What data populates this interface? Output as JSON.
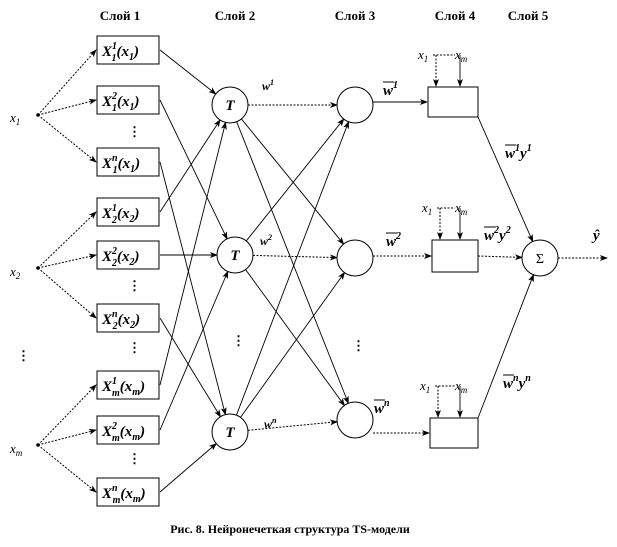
{
  "layers": [
    "Слой 1",
    "Слой 2",
    "Слой 3",
    "Слой 4",
    "Слой 5"
  ],
  "inputs": [
    {
      "base": "x",
      "sub": "1"
    },
    {
      "base": "x",
      "sub": "2"
    },
    {
      "base": "x",
      "sub": "m"
    }
  ],
  "membership_boxes": [
    {
      "base": "X",
      "sup": "1",
      "sub": "1",
      "arg": "x",
      "arg_sub": "1"
    },
    {
      "base": "X",
      "sup": "2",
      "sub": "1",
      "arg": "x",
      "arg_sub": "1"
    },
    {
      "base": "X",
      "sup": "n",
      "sub": "1",
      "arg": "x",
      "arg_sub": "1"
    },
    {
      "base": "X",
      "sup": "1",
      "sub": "2",
      "arg": "x",
      "arg_sub": "2"
    },
    {
      "base": "X",
      "sup": "2",
      "sub": "2",
      "arg": "x",
      "arg_sub": "2"
    },
    {
      "base": "X",
      "sup": "n",
      "sub": "2",
      "arg": "x",
      "arg_sub": "2"
    },
    {
      "base": "X",
      "sup": "1",
      "sub": "m",
      "arg": "x",
      "arg_sub": "m"
    },
    {
      "base": "X",
      "sup": "2",
      "sub": "m",
      "arg": "x",
      "arg_sub": "m"
    },
    {
      "base": "X",
      "sup": "n",
      "sub": "m",
      "arg": "x",
      "arg_sub": "m"
    }
  ],
  "t_node_label": "T",
  "weights": [
    {
      "base": "w",
      "sup": "1"
    },
    {
      "base": "w",
      "sup": "2"
    },
    {
      "base": "w",
      "sup": "n"
    }
  ],
  "normalized_weights": [
    {
      "base": "w",
      "sup": "1"
    },
    {
      "base": "w",
      "sup": "2"
    },
    {
      "base": "w",
      "sup": "n"
    }
  ],
  "rule_outputs": [
    {
      "w": "w",
      "w_sup": "1",
      "y": "y",
      "y_sup": "1"
    },
    {
      "w": "w",
      "w_sup": "2",
      "y": "y",
      "y_sup": "2"
    },
    {
      "w": "w",
      "w_sup": "n",
      "y": "y",
      "y_sup": "n"
    }
  ],
  "layer4_inputs": {
    "first": {
      "base": "x",
      "sub": "1"
    },
    "last": {
      "base": "x",
      "sub": "m"
    }
  },
  "sum_label": "Σ",
  "output_label": "ŷ",
  "ellipsis": "⋮",
  "caption": "Рис. 8. Нейронечеткая структура TS-модели"
}
